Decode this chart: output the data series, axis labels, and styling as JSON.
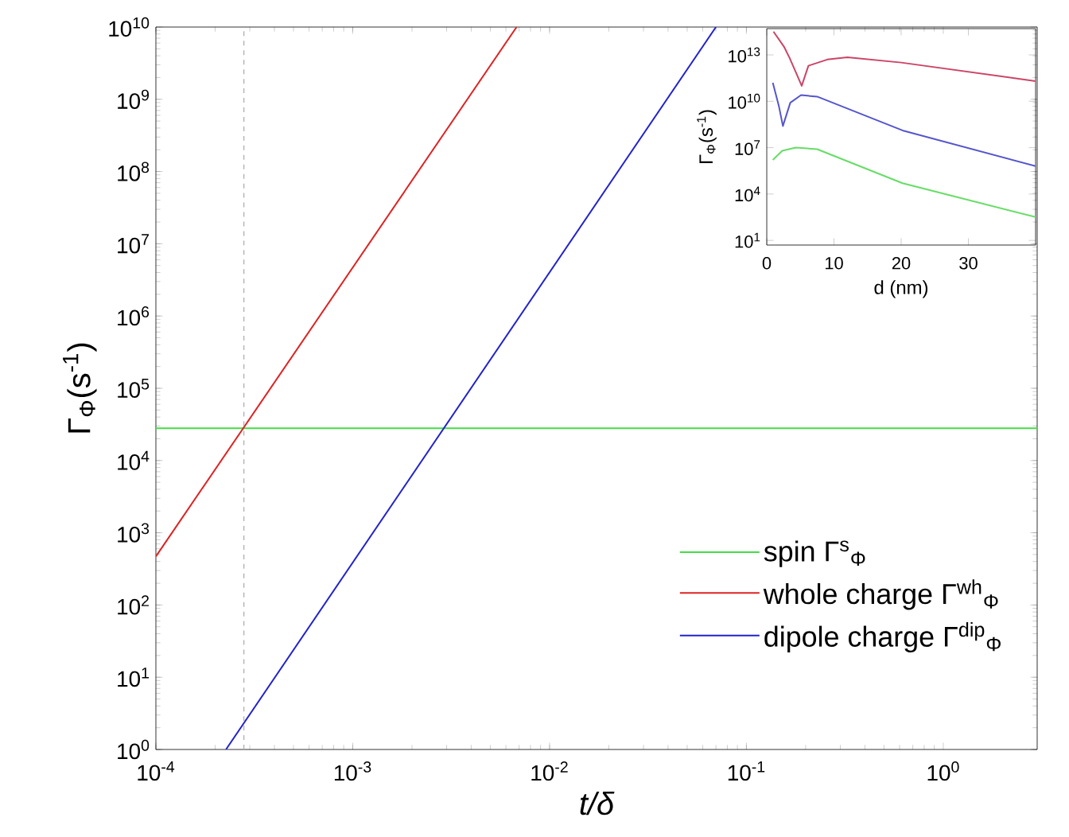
{
  "chart_data": [
    {
      "type": "line",
      "xlabel": "t/δ",
      "ylabel": "Γ$_{Φ}$(s$^{-1}$)",
      "log": "xy",
      "legend": "bottom right",
      "xlim": [
        0.0001,
        3
      ],
      "ylim": [
        1,
        10000000000.0
      ],
      "xticks": [
        {
          "value": 0.0001,
          "label": "10$^{-4}$"
        },
        {
          "value": 0.001,
          "label": "10$^{-3}$"
        },
        {
          "value": 0.01,
          "label": "10$^{-2}$"
        },
        {
          "value": 0.1,
          "label": "10$^{-1}$"
        },
        {
          "value": 1,
          "label": "10$^{0}$"
        }
      ],
      "yticks": [
        {
          "value": 1,
          "label": "10$^{0}$"
        },
        {
          "value": 10,
          "label": "10$^{1}$"
        },
        {
          "value": 100,
          "label": "10$^{2}$"
        },
        {
          "value": 1000,
          "label": "10$^{3}$"
        },
        {
          "value": 10000,
          "label": "10$^{4}$"
        },
        {
          "value": 100000,
          "label": "10$^{5}$"
        },
        {
          "value": 1000000,
          "label": "10$^{6}$"
        },
        {
          "value": 10000000,
          "label": "10$^{7}$"
        },
        {
          "value": 100000000,
          "label": "10$^{8}$"
        },
        {
          "value": 1000000000,
          "label": "10$^{9}$"
        },
        {
          "value": 10000000000,
          "label": "10$^{10}$"
        }
      ],
      "ref_lines": [
        {
          "axis": "x",
          "value": 0.00028,
          "color": "#aaaaaa",
          "line_style": "dashed"
        }
      ],
      "series": [
        {
          "name": "spin Γ$^{s}$$_{Φ}$",
          "color": "#44dd44",
          "x": [
            0.0001,
            3
          ],
          "values": [
            28000,
            28000
          ]
        },
        {
          "name": "whole charge Γ$^{wh}$$_{Φ}$",
          "color": "#dd2222",
          "x": [
            0.0001,
            0.0068
          ],
          "values": [
            470,
            10000000000.0
          ]
        },
        {
          "name": "dipole charge Γ$^{dip}$$_{Φ}$",
          "color": "#2222cc",
          "x": [
            0.000227,
            0.07
          ],
          "values": [
            1,
            10000000000.0
          ]
        }
      ]
    },
    {
      "type": "line",
      "xlabel": "d (nm)",
      "ylabel": "Γ$_{Φ}$(s$^{-1}$)",
      "log": "y",
      "xlim": [
        0,
        40
      ],
      "ylim": [
        5,
        500000000000000.0
      ],
      "xticks": [
        0,
        10,
        20,
        30
      ],
      "yticks": [
        {
          "value": 10,
          "label": "10$^{1}$"
        },
        {
          "value": 10000,
          "label": "10$^{4}$"
        },
        {
          "value": 10000000,
          "label": "10$^{7}$"
        },
        {
          "value": 10000000000,
          "label": "10$^{10}$"
        },
        {
          "value": 10000000000000,
          "label": "10$^{13}$"
        }
      ],
      "series": [
        {
          "color": "#cc4466",
          "x": [
            1,
            2.6,
            3.4,
            4.6,
            5.2,
            6.2,
            9,
            12,
            20,
            40
          ],
          "values": [
            320000000000000.0,
            32000000000000.0,
            6300000000000.0,
            400000000000.0,
            100000000000.0,
            2000000000000.0,
            5000000000000.0,
            7000000000000.0,
            3200000000000.0,
            200000000000.0
          ]
        },
        {
          "color": "#5555cc",
          "x": [
            0.9,
            1.8,
            2.4,
            3.5,
            5.1,
            7.5,
            20.2,
            40
          ],
          "values": [
            160000000000.0,
            5000000000.0,
            250000000.0,
            8000000000.0,
            25000000000.0,
            20000000000.0,
            130000000.0,
            630000.0
          ]
        },
        {
          "color": "#66dd66",
          "x": [
            0.9,
            2.3,
            4.3,
            7.5,
            20.2,
            40
          ],
          "values": [
            1600000.0,
            6300000.0,
            10000000.0,
            8000000.0,
            50000.0,
            320
          ]
        }
      ]
    }
  ]
}
